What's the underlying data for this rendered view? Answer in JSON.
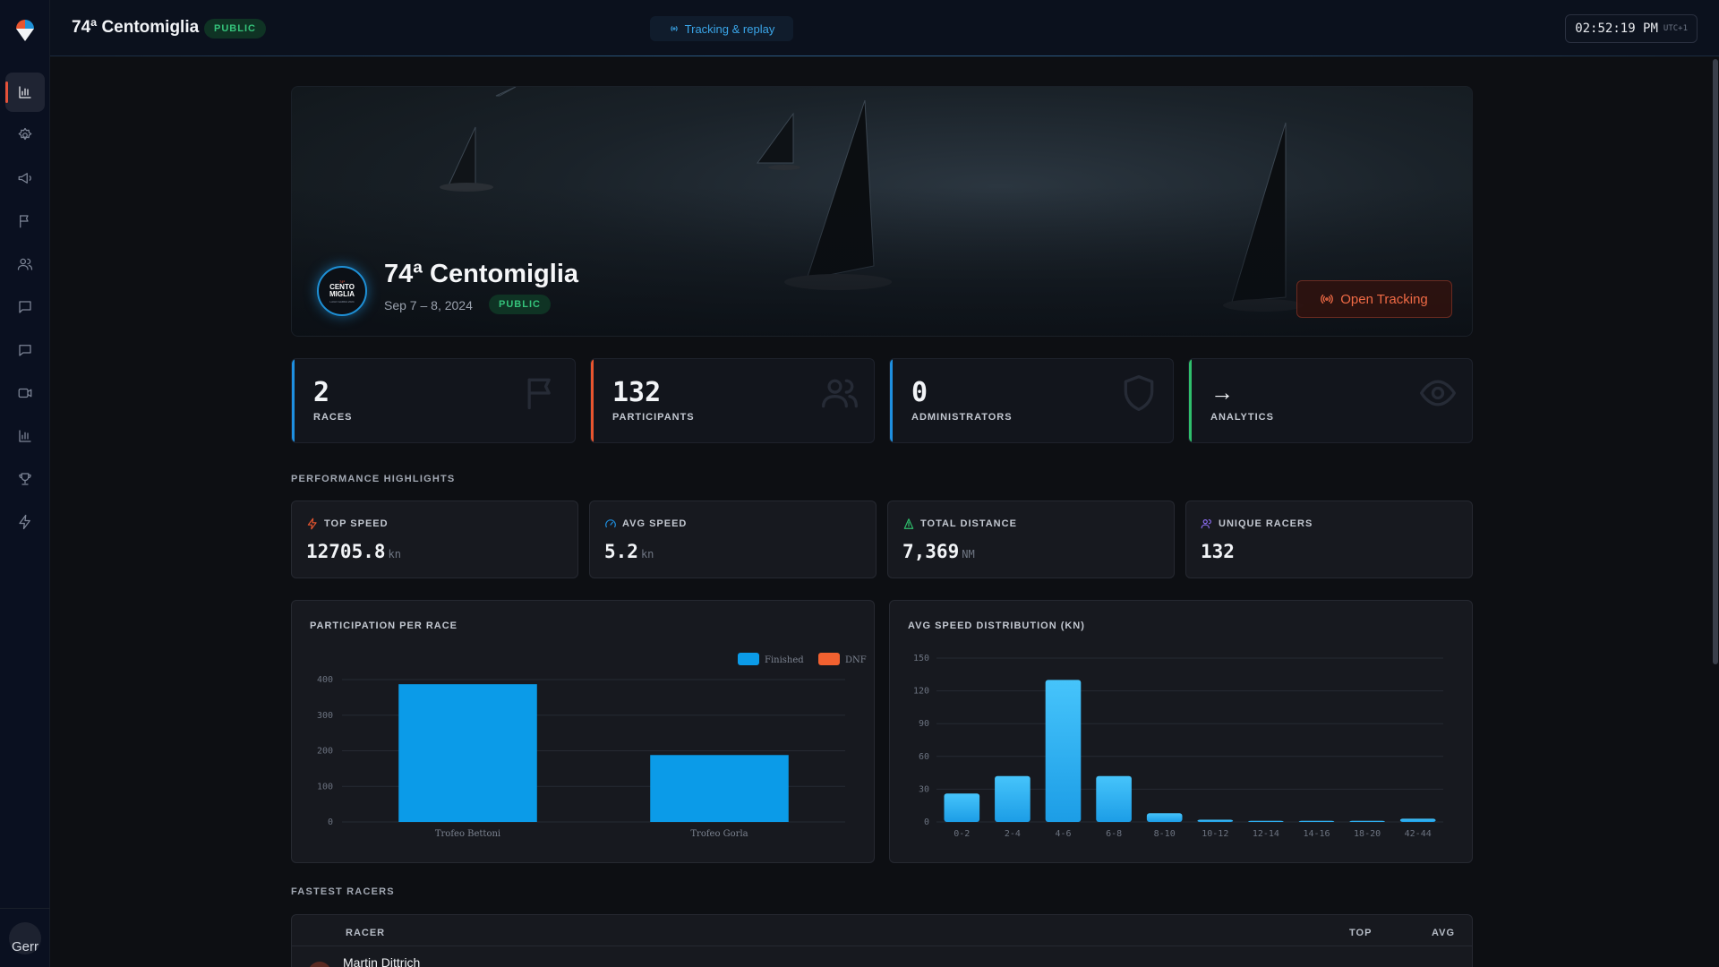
{
  "header": {
    "event_title": "74ª Centomiglia",
    "status_badge": "PUBLIC",
    "tracking_link": "Tracking & replay",
    "clock_time": "02:52:19 PM",
    "clock_tz": "UTC+1"
  },
  "sidebar": {
    "items": [
      {
        "icon": "bar-chart-icon",
        "active": true
      },
      {
        "icon": "gear-icon"
      },
      {
        "icon": "megaphone-icon"
      },
      {
        "icon": "flag-icon"
      },
      {
        "icon": "users-icon"
      },
      {
        "icon": "chat-icon"
      },
      {
        "icon": "message-icon"
      },
      {
        "icon": "video-icon"
      },
      {
        "icon": "bar-chart-icon"
      },
      {
        "icon": "trophy-icon"
      },
      {
        "icon": "bolt-icon"
      }
    ],
    "avatar_text": "Gerr"
  },
  "hero": {
    "title": "74ª Centomiglia",
    "dates": "Sep 7 – 8, 2024",
    "badge": "PUBLIC",
    "logo_line1": "74ª",
    "logo_line2": "CENTO MIGLIA",
    "logo_line3": "LAGO GARDA 2024",
    "open_tracking": "Open Tracking"
  },
  "stats": [
    {
      "value": "2",
      "label": "RACES",
      "color": "#1e8fe0",
      "icon": "flag-icon"
    },
    {
      "value": "132",
      "label": "PARTICIPANTS",
      "color": "#e8552f",
      "icon": "users-icon"
    },
    {
      "value": "0",
      "label": "ADMINISTRATORS",
      "color": "#1e8fe0",
      "icon": "shield-icon"
    },
    {
      "value": "→",
      "label": "ANALYTICS",
      "color": "#2fbf6c",
      "icon": "eye-icon"
    }
  ],
  "highlights_title": "PERFORMANCE HIGHLIGHTS",
  "highlights": [
    {
      "label": "TOP SPEED",
      "value": "12705.8",
      "unit": "kn",
      "icon": "bolt-icon",
      "color": "#e8552f"
    },
    {
      "label": "AVG SPEED",
      "value": "5.2",
      "unit": "kn",
      "icon": "gauge-icon",
      "color": "#1e8fe0"
    },
    {
      "label": "TOTAL DISTANCE",
      "value": "7,369",
      "unit": "NM",
      "icon": "route-icon",
      "color": "#2fbf6c"
    },
    {
      "label": "UNIQUE RACERS",
      "value": "132",
      "unit": "",
      "icon": "users-icon",
      "color": "#8b6cf0"
    }
  ],
  "chart_data": [
    {
      "type": "bar",
      "title": "PARTICIPATION PER RACE",
      "categories": [
        "Trofeo Bettoni",
        "Trofeo Gorla"
      ],
      "series": [
        {
          "name": "Finished",
          "values": [
            387,
            188
          ],
          "color": "#0b9be8"
        },
        {
          "name": "DNF",
          "values": [
            0,
            0
          ],
          "color": "#f26130"
        }
      ],
      "yticks": [
        0,
        100,
        200,
        300,
        400
      ],
      "ylim": [
        0,
        400
      ],
      "legend": "top-right",
      "grid": true
    },
    {
      "type": "bar",
      "title": "AVG SPEED DISTRIBUTION (KN)",
      "categories": [
        "0-2",
        "2-4",
        "4-6",
        "6-8",
        "8-10",
        "10-12",
        "12-14",
        "14-16",
        "18-20",
        "42-44"
      ],
      "values": [
        26,
        42,
        130,
        42,
        8,
        2,
        1,
        1,
        1,
        3
      ],
      "yticks": [
        0,
        30,
        60,
        90,
        120,
        150
      ],
      "ylim": [
        0,
        150
      ],
      "grid": true,
      "color": "#3ab8f5"
    }
  ],
  "table": {
    "title": "FASTEST RACERS",
    "columns": [
      "RACER",
      "TOP",
      "AVG"
    ],
    "rows": [
      {
        "name": "Martin Dittrich"
      }
    ]
  }
}
